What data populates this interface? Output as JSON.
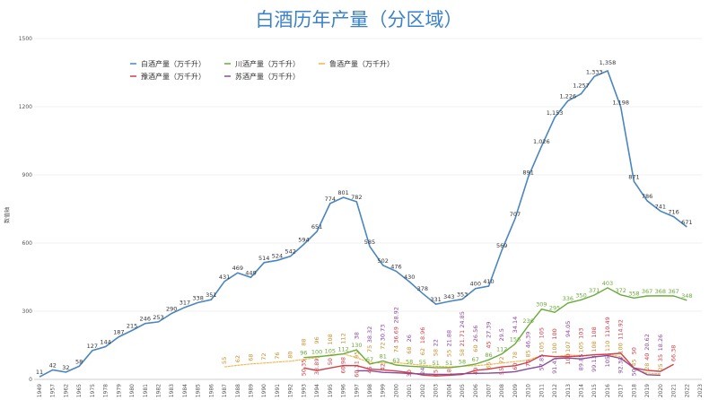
{
  "chart_data": {
    "type": "line",
    "title": "白酒历年产量（分区域）",
    "xlabel": "",
    "ylabel": "数值轴",
    "ylim": [
      0,
      1500
    ],
    "yticks": [
      0,
      300,
      600,
      900,
      1200,
      1500
    ],
    "grid": true,
    "legend_position": "top-left",
    "categories": [
      "1949",
      "1957",
      "1962",
      "1965",
      "1975",
      "1978",
      "1979",
      "1980",
      "1981",
      "1982",
      "1983",
      "1984",
      "1985",
      "1986",
      "1987",
      "1988",
      "1989",
      "1990",
      "1991",
      "1992",
      "1993",
      "1994",
      "1995",
      "1996",
      "1997",
      "1998",
      "1999",
      "2000",
      "2001",
      "2002",
      "2003",
      "2004",
      "2005",
      "2006",
      "2007",
      "2008",
      "2009",
      "2010",
      "2011",
      "2012",
      "2013",
      "2014",
      "2015",
      "2016",
      "2017",
      "2018",
      "2019",
      "2020",
      "2021",
      "2022",
      "2023"
    ],
    "series": [
      {
        "name": "白酒产量（万千升）",
        "color": "#4a86c0",
        "values": [
          11,
          42,
          32,
          58,
          127,
          144,
          187,
          215,
          246,
          253,
          290,
          317,
          338,
          351,
          431,
          469,
          449,
          514,
          524,
          542,
          594,
          651,
          774,
          801,
          782,
          585,
          502,
          476,
          430,
          378,
          331,
          343,
          353,
          400,
          410,
          569,
          707,
          891,
          1026,
          1153,
          1226,
          1257,
          1333,
          1358,
          1198,
          871,
          786,
          741,
          716,
          671,
          null
        ]
      },
      {
        "name": "川酒产量（万千升）",
        "color": "#6aab3c",
        "values": [
          null,
          null,
          null,
          null,
          null,
          null,
          null,
          null,
          null,
          null,
          null,
          null,
          null,
          null,
          null,
          null,
          null,
          null,
          null,
          null,
          96,
          100,
          105,
          112,
          130,
          67,
          81,
          63,
          58,
          55,
          51,
          51,
          58,
          67,
          86,
          112,
          156,
          236,
          309,
          295,
          336,
          350,
          371,
          403,
          372,
          358,
          367,
          368,
          367,
          348,
          null
        ]
      },
      {
        "name": "鲁酒产量（万千升）",
        "color": "#f0b54a",
        "values": [
          null,
          null,
          null,
          null,
          null,
          null,
          null,
          null,
          null,
          null,
          null,
          null,
          null,
          null,
          55,
          62,
          68,
          72,
          76,
          80,
          88,
          96,
          108,
          112,
          95,
          75,
          72,
          74,
          68,
          62,
          58,
          55,
          58,
          60,
          65,
          72,
          78,
          85,
          105,
          100,
          107,
          105,
          108,
          110,
          100,
          45,
          28,
          25,
          null,
          null,
          null
        ]
      },
      {
        "name": "豫酒产量（万千升）",
        "color": "#d0404a",
        "values": [
          null,
          null,
          null,
          null,
          null,
          null,
          null,
          null,
          null,
          null,
          null,
          null,
          null,
          null,
          null,
          null,
          null,
          null,
          null,
          null,
          50.35,
          38.89,
          50,
          60.98,
          60.31,
          45,
          42,
          36.69,
          30,
          18.96,
          15,
          18,
          21.71,
          40,
          45,
          55,
          60,
          75,
          105,
          100,
          100,
          103,
          108,
          110.49,
          114.92,
          50,
          40,
          35,
          66.38,
          null,
          null
        ]
      },
      {
        "name": "苏酒产量（万千升）",
        "color": "#8a4a9a",
        "values": [
          null,
          null,
          null,
          null,
          null,
          null,
          null,
          null,
          null,
          null,
          null,
          null,
          null,
          null,
          null,
          null,
          null,
          null,
          null,
          null,
          null,
          null,
          null,
          null,
          38,
          38.32,
          30.73,
          28.92,
          26,
          24,
          22,
          21.88,
          24.85,
          26.56,
          27.39,
          29.5,
          34.14,
          46.39,
          57.85,
          91.41,
          94.05,
          89.85,
          99.13,
          105,
          92.38,
          50,
          20.62,
          18.26,
          null,
          null,
          null
        ]
      }
    ]
  }
}
